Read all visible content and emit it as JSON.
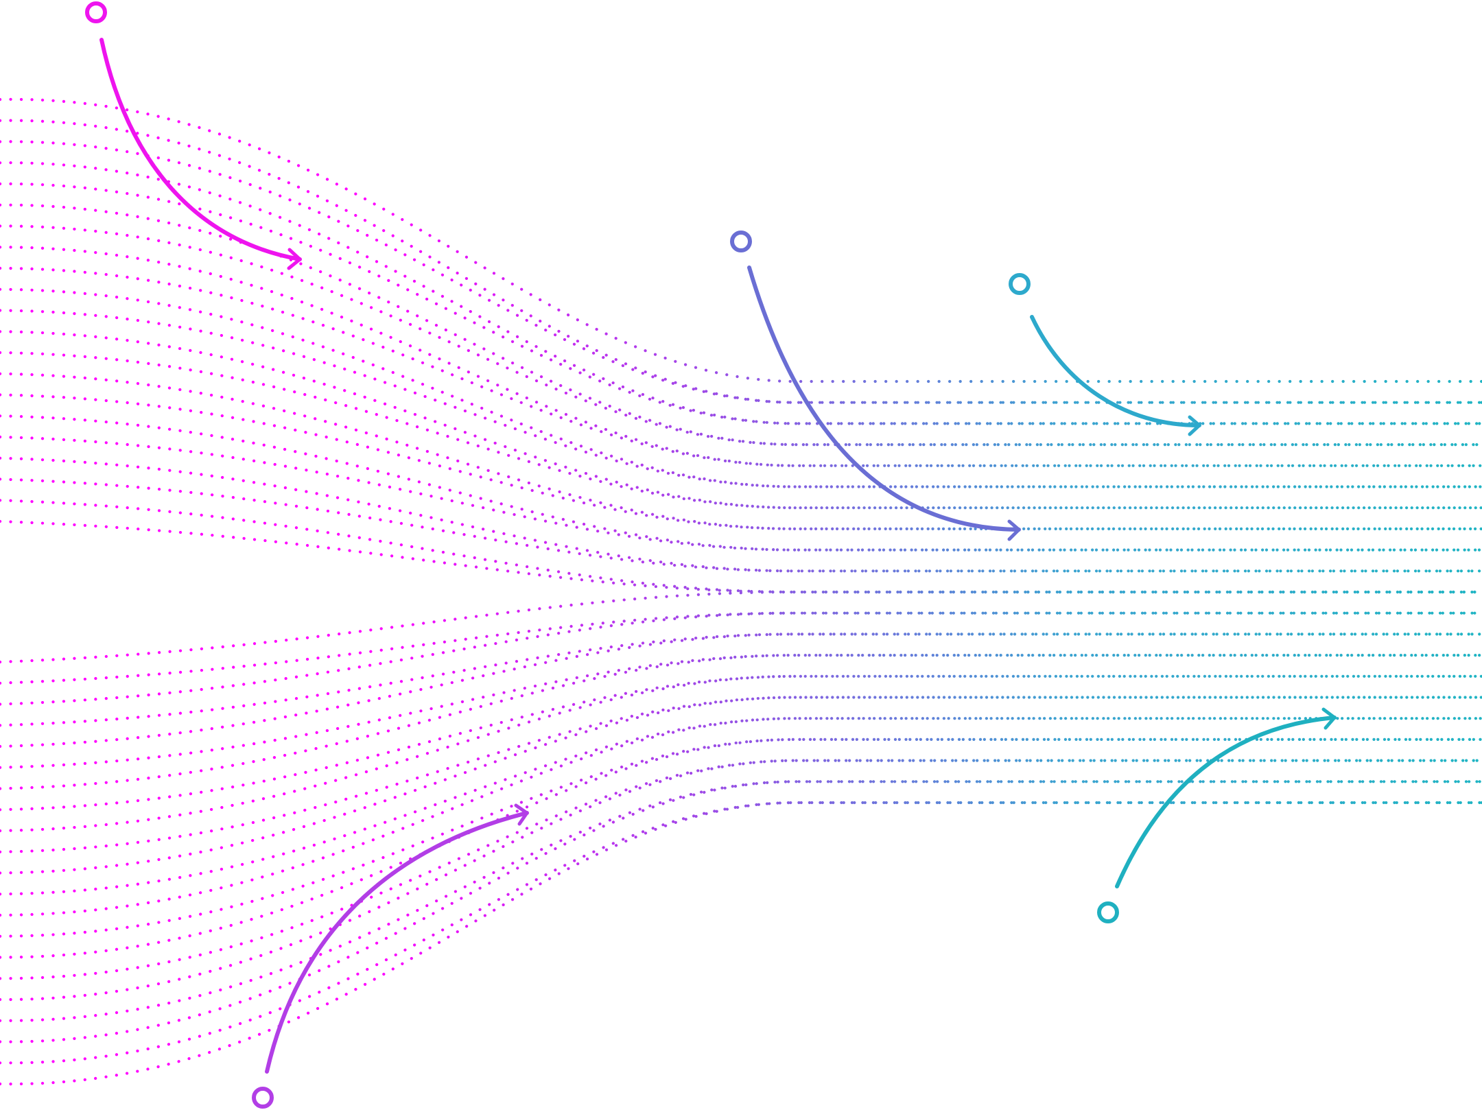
{
  "figure": {
    "background": "#ffffff",
    "gradient_colors": {
      "start": "#ff00ff",
      "middle": "#9b4be6",
      "end": "#1fb4c3"
    },
    "upper_band_lines": 21,
    "lower_band_lines": 21,
    "output_band_lines": 21,
    "icon": "circle-outline-icon"
  },
  "annotations": [
    {
      "name": "annotation-arrow-top-left",
      "color": "#ee14ee"
    },
    {
      "name": "annotation-arrow-bottom-left",
      "color": "#b23ee6"
    },
    {
      "name": "annotation-arrow-middle",
      "color": "#6a6ed4"
    },
    {
      "name": "annotation-arrow-top-right",
      "color": "#2da9cc"
    },
    {
      "name": "annotation-arrow-bottom-right",
      "color": "#1fb0c0"
    }
  ]
}
